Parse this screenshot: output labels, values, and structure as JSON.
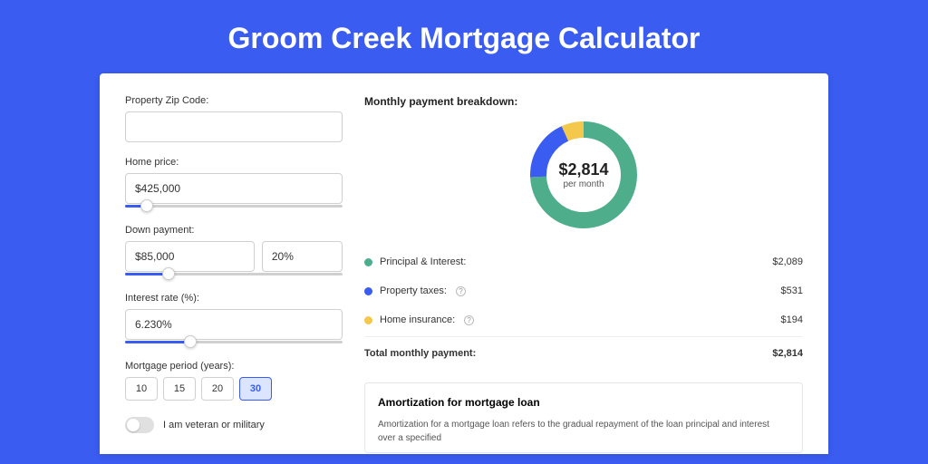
{
  "page": {
    "title": "Groom Creek Mortgage Calculator",
    "background_color": "#3a5cf0"
  },
  "form": {
    "zip": {
      "label": "Property Zip Code:",
      "value": ""
    },
    "home_price": {
      "label": "Home price:",
      "value": "$425,000",
      "slider_pct": 10
    },
    "down_payment": {
      "label": "Down payment:",
      "amount": "$85,000",
      "percent": "20%",
      "slider_pct": 20
    },
    "interest_rate": {
      "label": "Interest rate (%):",
      "value": "6.230%",
      "slider_pct": 30
    },
    "period": {
      "label": "Mortgage period (years):",
      "options": [
        "10",
        "15",
        "20",
        "30"
      ],
      "selected": "30"
    },
    "veteran": {
      "label": "I am veteran or military",
      "checked": false
    }
  },
  "breakdown": {
    "title": "Monthly payment breakdown:",
    "total_amount": "$2,814",
    "total_sub": "per month",
    "items": [
      {
        "label": "Principal & Interest:",
        "value": "$2,089",
        "color": "#4eae8c",
        "pct": 74.2,
        "help": false
      },
      {
        "label": "Property taxes:",
        "value": "$531",
        "color": "#3a5cf0",
        "pct": 18.9,
        "help": true
      },
      {
        "label": "Home insurance:",
        "value": "$194",
        "color": "#f3c84b",
        "pct": 6.9,
        "help": true
      }
    ],
    "total_label": "Total monthly payment:",
    "total_value": "$2,814"
  },
  "amortization": {
    "title": "Amortization for mortgage loan",
    "text": "Amortization for a mortgage loan refers to the gradual repayment of the loan principal and interest over a specified"
  },
  "style": {
    "donut_stroke": 18,
    "donut_radius": 50
  }
}
